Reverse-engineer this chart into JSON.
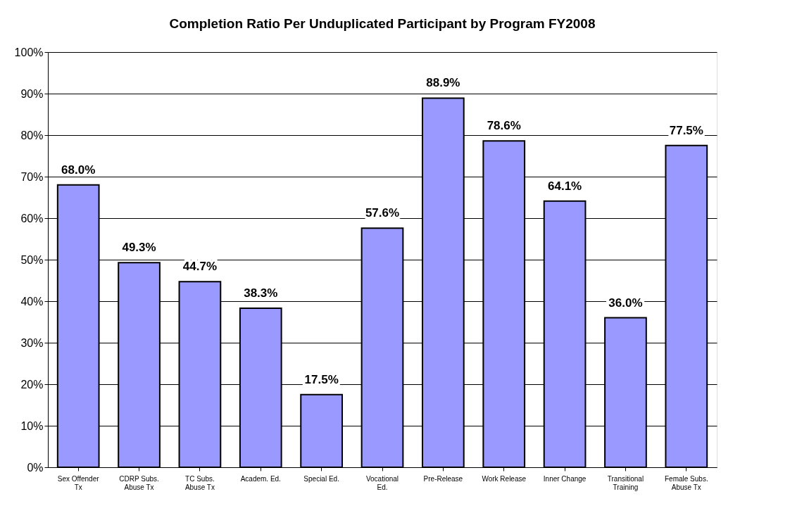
{
  "chart_data": {
    "type": "bar",
    "title": "Completion Ratio Per Unduplicated Participant by Program FY2008",
    "categories": [
      "Sex Offender Tx",
      "CDRP Subs. Abuse Tx",
      "TC Subs. Abuse Tx",
      "Academ. Ed.",
      "Special Ed.",
      "Vocational Ed.",
      "Pre-Release",
      "Work Release",
      "Inner Change",
      "Transitional Training",
      "Female Subs. Abuse Tx"
    ],
    "values": [
      68.0,
      49.3,
      44.7,
      38.3,
      17.5,
      57.6,
      88.9,
      78.6,
      64.1,
      36.0,
      77.5
    ],
    "value_labels": [
      "68.0%",
      "49.3%",
      "44.7%",
      "38.3%",
      "17.5%",
      "57.6%",
      "88.9%",
      "78.6%",
      "64.1%",
      "36.0%",
      "77.5%"
    ],
    "color": "#9999ff",
    "ylim": [
      0,
      100
    ],
    "yticks": [
      {
        "value": 0,
        "label": "0%"
      },
      {
        "value": 10,
        "label": "10%"
      },
      {
        "value": 20,
        "label": "20%"
      },
      {
        "value": 30,
        "label": "30%"
      },
      {
        "value": 40,
        "label": "40%"
      },
      {
        "value": 50,
        "label": "50%"
      },
      {
        "value": 60,
        "label": "60%"
      },
      {
        "value": 70,
        "label": "70%"
      },
      {
        "value": 80,
        "label": "80%"
      },
      {
        "value": 90,
        "label": "90%"
      },
      {
        "value": 100,
        "label": "100%"
      }
    ],
    "grid": "y"
  }
}
